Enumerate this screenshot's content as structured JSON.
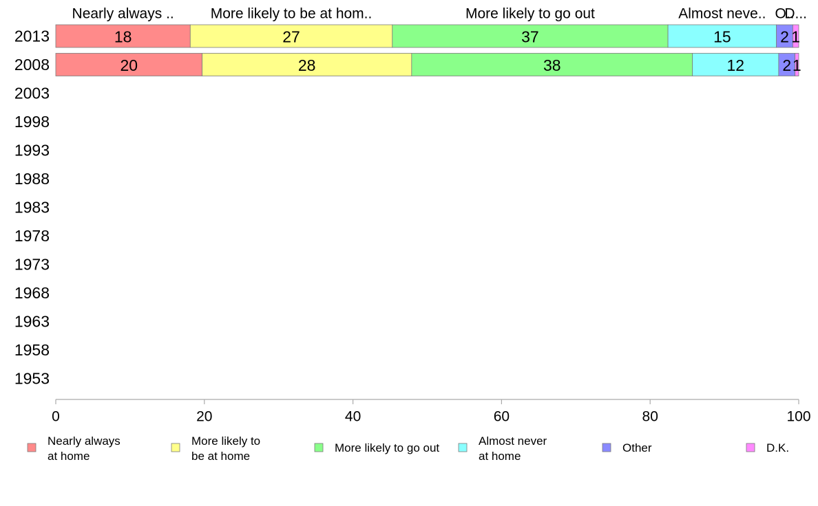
{
  "chart_data": {
    "type": "bar",
    "orientation": "horizontal",
    "stacked": true,
    "categories": [
      "2013",
      "2008",
      "2003",
      "1998",
      "1993",
      "1988",
      "1983",
      "1978",
      "1973",
      "1968",
      "1963",
      "1958",
      "1953"
    ],
    "series": [
      {
        "name": "Nearly always at home",
        "legend_lines": [
          "Nearly always",
          "at home"
        ],
        "top_label": "Nearly always ..",
        "color": "#ff8a8a",
        "values": [
          18.1,
          19.7,
          null,
          null,
          null,
          null,
          null,
          null,
          null,
          null,
          null,
          null,
          null
        ],
        "labels": [
          "18",
          "20"
        ]
      },
      {
        "name": "More likely to be at home",
        "legend_lines": [
          "More likely to",
          "be at home"
        ],
        "top_label": "More likely to be at hom..",
        "color": "#ffff8a",
        "values": [
          27.2,
          28.2,
          null,
          null,
          null,
          null,
          null,
          null,
          null,
          null,
          null,
          null,
          null
        ],
        "labels": [
          "27",
          "28"
        ]
      },
      {
        "name": "More likely to go out",
        "legend_lines": [
          "More likely to go out"
        ],
        "top_label": "More likely to go out",
        "color": "#8aff8a",
        "values": [
          37.1,
          37.8,
          null,
          null,
          null,
          null,
          null,
          null,
          null,
          null,
          null,
          null,
          null
        ],
        "labels": [
          "37",
          "38"
        ]
      },
      {
        "name": "Almost never at home",
        "legend_lines": [
          "Almost never",
          "at home"
        ],
        "top_label": "Almost neve..",
        "color": "#8affff",
        "values": [
          14.6,
          11.6,
          null,
          null,
          null,
          null,
          null,
          null,
          null,
          null,
          null,
          null,
          null
        ],
        "labels": [
          "15",
          "12"
        ]
      },
      {
        "name": "Other",
        "legend_lines": [
          "Other"
        ],
        "top_label": "O..",
        "color": "#8a8aff",
        "values": [
          2.2,
          2.2,
          null,
          null,
          null,
          null,
          null,
          null,
          null,
          null,
          null,
          null,
          null
        ],
        "labels": [
          "2",
          "2"
        ]
      },
      {
        "name": "D.K.",
        "legend_lines": [
          "D.K."
        ],
        "top_label": "D...",
        "color": "#ff8aff",
        "values": [
          0.8,
          0.5,
          null,
          null,
          null,
          null,
          null,
          null,
          null,
          null,
          null,
          null,
          null
        ],
        "labels": [
          "1",
          "1"
        ]
      }
    ],
    "xlim": [
      0,
      100
    ],
    "x_ticks": [
      "0",
      "20",
      "40",
      "60",
      "80",
      "100"
    ],
    "grid": false,
    "legend_position": "bottom"
  }
}
